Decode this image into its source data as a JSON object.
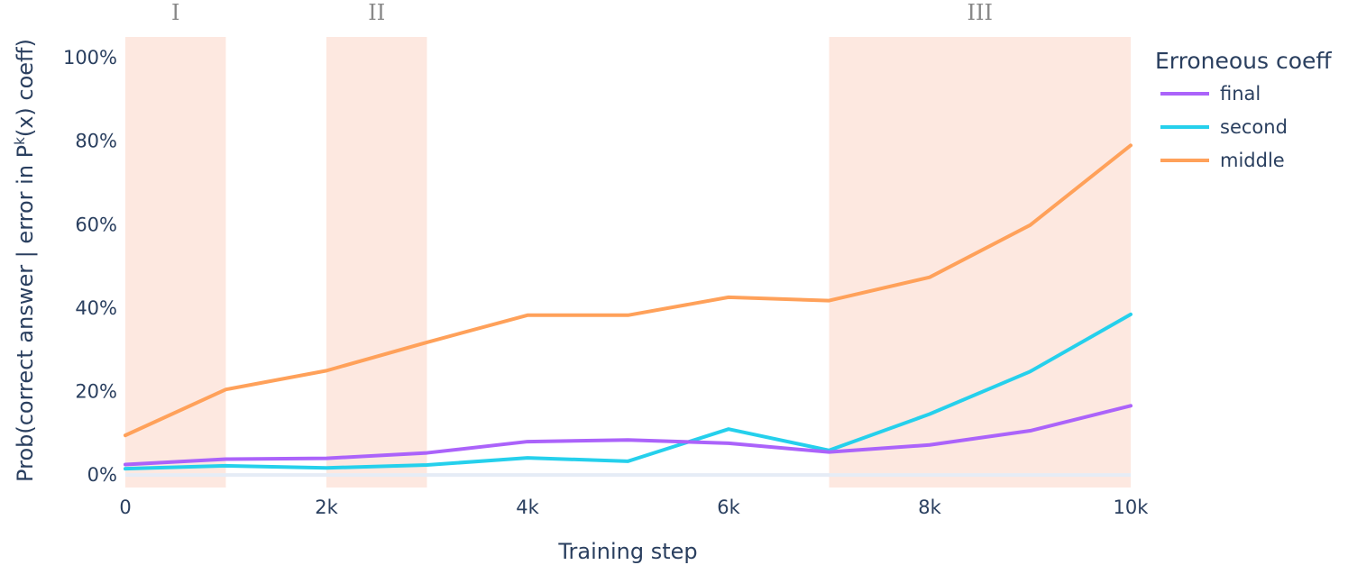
{
  "chart_data": {
    "type": "line",
    "xlabel": "Training step",
    "ylabel_parts": [
      "Prob(correct answer | error in P",
      "k",
      "(x) coeff)"
    ],
    "x_ticks": [
      {
        "value": 0,
        "label": "0"
      },
      {
        "value": 2000,
        "label": "2k"
      },
      {
        "value": 4000,
        "label": "4k"
      },
      {
        "value": 6000,
        "label": "6k"
      },
      {
        "value": 8000,
        "label": "8k"
      },
      {
        "value": 10000,
        "label": "10k"
      }
    ],
    "y_ticks": [
      {
        "value": 0,
        "label": "0%"
      },
      {
        "value": 20,
        "label": "20%"
      },
      {
        "value": 40,
        "label": "40%"
      },
      {
        "value": 60,
        "label": "60%"
      },
      {
        "value": 80,
        "label": "80%"
      },
      {
        "value": 100,
        "label": "100%"
      }
    ],
    "xlim": [
      0,
      10000
    ],
    "ylim": [
      -3,
      105
    ],
    "legend_title": "Erroneous coeff",
    "legend_position": "right",
    "shaded_regions": [
      {
        "label": "I",
        "x0": 0,
        "x1": 1000,
        "color": "#fde8e0"
      },
      {
        "label": "II",
        "x0": 2000,
        "x1": 3000,
        "color": "#fde8e0"
      },
      {
        "label": "III",
        "x0": 7000,
        "x1": 10000,
        "color": "#fde8e0"
      }
    ],
    "x": [
      0,
      1000,
      2000,
      3000,
      4000,
      5000,
      6000,
      7000,
      8000,
      9000,
      10000
    ],
    "series": [
      {
        "name": "final",
        "color": "#ab63fa",
        "values": [
          2.5,
          3.8,
          4.0,
          5.3,
          8.0,
          8.4,
          7.6,
          5.5,
          7.2,
          10.6,
          16.6
        ]
      },
      {
        "name": "second",
        "color": "#25d0ec",
        "values": [
          1.5,
          2.2,
          1.7,
          2.4,
          4.1,
          3.3,
          11.0,
          5.9,
          14.6,
          24.8,
          38.5
        ]
      },
      {
        "name": "middle",
        "color": "#ffa15a",
        "values": [
          9.5,
          20.5,
          25.0,
          31.8,
          38.3,
          38.3,
          42.6,
          41.8,
          47.4,
          59.9,
          79.0
        ]
      }
    ]
  }
}
